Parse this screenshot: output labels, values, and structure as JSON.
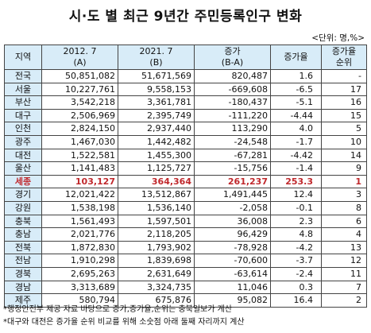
{
  "title": "시·도 별 최근 9년간 주민등록인구 변화",
  "unit": "<단위: 명,%>",
  "headers": {
    "region": "지역",
    "y2012": "2012. 7",
    "y2012_sub": "(A)",
    "y2021": "2021. 7",
    "y2021_sub": "(B)",
    "change": "증가",
    "change_sub": "(B-A)",
    "rate": "증가율",
    "rank": "증가율",
    "rank_sub": "순위"
  },
  "rows": [
    {
      "region": "전국",
      "a": "50,851,082",
      "b": "51,671,569",
      "diff": "820,487",
      "rate": "1.6",
      "rank": "-"
    },
    {
      "region": "서울",
      "a": "10,227,761",
      "b": "9,558,153",
      "diff": "-669,608",
      "rate": "-6.5",
      "rank": "17"
    },
    {
      "region": "부산",
      "a": "3,542,218",
      "b": "3,361,781",
      "diff": "-180,437",
      "rate": "-5.1",
      "rank": "16"
    },
    {
      "region": "대구",
      "a": "2,506,969",
      "b": "2,395,749",
      "diff": "-111,220",
      "rate": "-4.44",
      "rank": "15"
    },
    {
      "region": "인천",
      "a": "2,824,150",
      "b": "2,937,440",
      "diff": "113,290",
      "rate": "4.0",
      "rank": "5"
    },
    {
      "region": "광주",
      "a": "1,467,030",
      "b": "1,442,482",
      "diff": "-24,548",
      "rate": "-1.7",
      "rank": "10"
    },
    {
      "region": "대전",
      "a": "1,522,581",
      "b": "1,455,300",
      "diff": "-67,281",
      "rate": "-4.42",
      "rank": "14"
    },
    {
      "region": "울산",
      "a": "1,141,483",
      "b": "1,125,727",
      "diff": "-15,756",
      "rate": "-1.4",
      "rank": "9"
    },
    {
      "region": "세종",
      "a": "103,127",
      "b": "364,364",
      "diff": "261,237",
      "rate": "253.3",
      "rank": "1"
    },
    {
      "region": "경기",
      "a": "12,021,422",
      "b": "13,512,867",
      "diff": "1,491,445",
      "rate": "12.4",
      "rank": "3"
    },
    {
      "region": "강원",
      "a": "1,538,198",
      "b": "1,536,140",
      "diff": "-2,058",
      "rate": "-0.1",
      "rank": "8"
    },
    {
      "region": "충북",
      "a": "1,561,493",
      "b": "1,597,501",
      "diff": "36,008",
      "rate": "2.3",
      "rank": "6"
    },
    {
      "region": "충남",
      "a": "2,021,776",
      "b": "2,118,205",
      "diff": "96,429",
      "rate": "4.8",
      "rank": "4"
    },
    {
      "region": "전북",
      "a": "1,872,830",
      "b": "1,793,902",
      "diff": "-78,928",
      "rate": "-4.2",
      "rank": "13"
    },
    {
      "region": "전남",
      "a": "1,910,298",
      "b": "1,839,698",
      "diff": "-70,600",
      "rate": "-3.7",
      "rank": "12"
    },
    {
      "region": "경북",
      "a": "2,695,263",
      "b": "2,631,649",
      "diff": "-63,614",
      "rate": "-2.4",
      "rank": "11"
    },
    {
      "region": "경남",
      "a": "3,313,689",
      "b": "3,324,735",
      "diff": "11,046",
      "rate": "0.3",
      "rank": "7"
    },
    {
      "region": "제주",
      "a": "580,794",
      "b": "675,876",
      "diff": "95,082",
      "rate": "16.4",
      "rank": "2"
    }
  ],
  "highlight_region": "세종",
  "highlight_color": "#c0282c",
  "header_bg": "#d8ecf8",
  "notes": [
    "*행정안전부 제공 자료 바탕으로 증가,증가율,순위는 충북일보가 계산",
    "*대구와 대전은 증가율 순위 비교를 위해 소숫점 아래 둘째 자리까지 계산"
  ]
}
